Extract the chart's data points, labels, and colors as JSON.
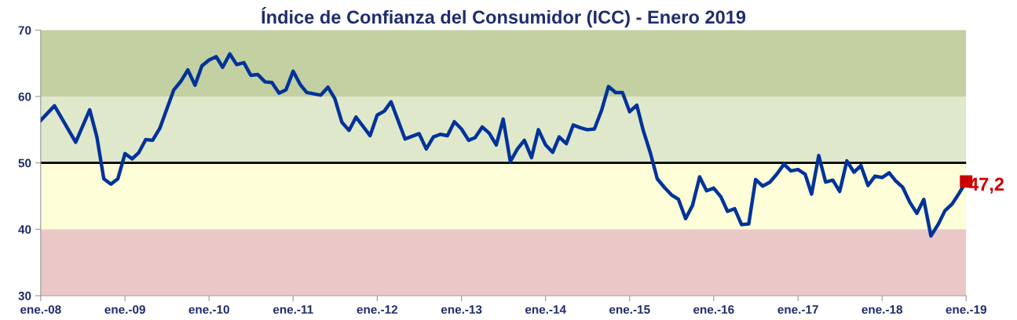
{
  "chart_data": {
    "type": "line",
    "title": "Índice de Confianza del Consumidor (ICC) - Enero 2019",
    "xlim": [
      "2008-01",
      "2019-01"
    ],
    "xticks": [
      {
        "value": "2008-01",
        "label": "ene.-08"
      },
      {
        "value": "2009-01",
        "label": "ene.-09"
      },
      {
        "value": "2010-01",
        "label": "ene.-10"
      },
      {
        "value": "2011-01",
        "label": "ene.-11"
      },
      {
        "value": "2012-01",
        "label": "ene.-12"
      },
      {
        "value": "2013-01",
        "label": "ene.-13"
      },
      {
        "value": "2014-01",
        "label": "ene.-14"
      },
      {
        "value": "2015-01",
        "label": "ene.-15"
      },
      {
        "value": "2016-01",
        "label": "ene.-16"
      },
      {
        "value": "2017-01",
        "label": "ene.-17"
      },
      {
        "value": "2018-01",
        "label": "ene.-18"
      },
      {
        "value": "2019-01",
        "label": "ene.-19"
      }
    ],
    "ylim": [
      30,
      70
    ],
    "yticks": [
      30,
      40,
      50,
      60,
      70
    ],
    "grid": false,
    "marker": "none",
    "line_style": "solid",
    "bands": [
      {
        "axis": "y",
        "from": 30,
        "to": 40,
        "color": "#eac8c8"
      },
      {
        "axis": "y",
        "from": 40,
        "to": 50,
        "color": "#fdfdd8"
      },
      {
        "axis": "y",
        "from": 50,
        "to": 60,
        "color": "#e0e8cc"
      },
      {
        "axis": "y",
        "from": 60,
        "to": 70,
        "color": "#c2d0a2"
      }
    ],
    "ref_lines": [
      {
        "axis": "y",
        "value": 50,
        "color": "#000000",
        "line_style": "solid"
      }
    ],
    "series": [
      {
        "color": "#003399",
        "x": [
          "2008-01",
          "2008-03",
          "2008-06",
          "2008-08",
          "2008-09",
          "2008-10",
          "2008-11",
          "2008-12",
          "2009-01",
          "2009-02",
          "2009-03",
          "2009-04",
          "2009-05",
          "2009-06",
          "2009-08",
          "2009-09",
          "2009-10",
          "2009-11",
          "2009-12",
          "2010-01",
          "2010-02",
          "2010-03",
          "2010-04",
          "2010-05",
          "2010-06",
          "2010-07",
          "2010-08",
          "2010-09",
          "2010-10",
          "2010-11",
          "2010-12",
          "2011-01",
          "2011-02",
          "2011-03",
          "2011-05",
          "2011-06",
          "2011-07",
          "2011-08",
          "2011-09",
          "2011-10",
          "2011-12",
          "2012-01",
          "2012-02",
          "2012-03",
          "2012-05",
          "2012-07",
          "2012-08",
          "2012-09",
          "2012-10",
          "2012-11",
          "2012-12",
          "2013-01",
          "2013-02",
          "2013-03",
          "2013-04",
          "2013-05",
          "2013-06",
          "2013-07",
          "2013-08",
          "2013-09",
          "2013-10",
          "2013-11",
          "2013-12",
          "2014-01",
          "2014-02",
          "2014-03",
          "2014-04",
          "2014-05",
          "2014-06",
          "2014-07",
          "2014-08",
          "2014-09",
          "2014-10",
          "2014-11",
          "2014-12",
          "2015-01",
          "2015-02",
          "2015-03",
          "2015-04",
          "2015-05",
          "2015-06",
          "2015-07",
          "2015-08",
          "2015-09",
          "2015-10",
          "2015-11",
          "2015-12",
          "2016-01",
          "2016-02",
          "2016-03",
          "2016-04",
          "2016-05",
          "2016-06",
          "2016-07",
          "2016-08",
          "2016-09",
          "2016-10",
          "2016-11",
          "2016-12",
          "2017-01",
          "2017-02",
          "2017-03",
          "2017-04",
          "2017-05",
          "2017-06",
          "2017-07",
          "2017-08",
          "2017-09",
          "2017-10",
          "2017-11",
          "2017-12",
          "2018-01",
          "2018-02",
          "2018-03",
          "2018-04",
          "2018-05",
          "2018-06",
          "2018-07",
          "2018-08",
          "2018-09",
          "2018-10",
          "2018-11",
          "2018-12",
          "2019-01"
        ],
        "values": [
          56.4,
          58.6,
          53.1,
          58.0,
          53.9,
          47.6,
          46.8,
          47.6,
          51.4,
          50.6,
          51.5,
          53.5,
          53.4,
          55.2,
          61.0,
          62.3,
          64.0,
          61.7,
          64.6,
          65.5,
          66.0,
          64.4,
          66.4,
          64.8,
          65.1,
          63.2,
          63.3,
          62.2,
          62.1,
          60.5,
          61.0,
          63.8,
          61.8,
          60.6,
          60.2,
          61.4,
          59.7,
          56.1,
          54.9,
          56.9,
          54.1,
          57.2,
          57.8,
          59.2,
          53.6,
          54.4,
          52.1,
          53.9,
          54.3,
          54.1,
          56.2,
          55.1,
          53.4,
          53.8,
          55.4,
          54.5,
          52.7,
          56.6,
          50.2,
          52.1,
          53.4,
          50.8,
          55.0,
          52.7,
          51.6,
          53.9,
          52.9,
          55.7,
          55.3,
          55.0,
          55.1,
          57.9,
          61.5,
          60.6,
          60.6,
          57.7,
          58.7,
          54.9,
          51.5,
          47.6,
          46.3,
          45.2,
          44.5,
          41.6,
          43.6,
          47.9,
          45.8,
          46.2,
          44.9,
          42.7,
          43.1,
          40.7,
          40.8,
          47.5,
          46.5,
          47.1,
          48.3,
          49.8,
          48.8,
          49.0,
          48.3,
          45.3,
          51.1,
          47.1,
          47.4,
          45.7,
          50.3,
          48.6,
          49.6,
          46.6,
          48.0,
          47.8,
          48.5,
          47.3,
          46.3,
          44.1,
          42.4,
          44.5,
          39.0,
          40.7,
          42.8,
          43.8,
          45.4,
          47.2
        ]
      },
      {
        "type": "scatter",
        "color": "#cc0000",
        "marker": "square",
        "x": [
          "2019-01"
        ],
        "values": [
          47.2
        ],
        "value_labels": [
          "47,2"
        ]
      }
    ]
  }
}
